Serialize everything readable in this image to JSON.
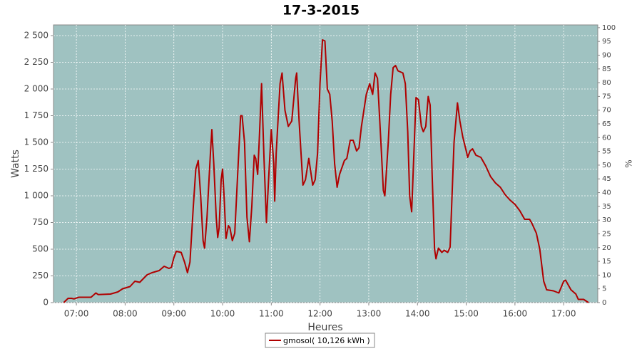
{
  "chart_data": {
    "type": "line",
    "title": "17-3-2015",
    "x_label": "Heures",
    "y_label": "Watts",
    "y2_label": "%",
    "xlim": [
      6.53,
      17.7
    ],
    "xticks": [
      {
        "value": 7,
        "label": "07:00"
      },
      {
        "value": 8,
        "label": "08:00"
      },
      {
        "value": 9,
        "label": "09:00"
      },
      {
        "value": 10,
        "label": "10:00"
      },
      {
        "value": 11,
        "label": "11:00"
      },
      {
        "value": 12,
        "label": "12:00"
      },
      {
        "value": 13,
        "label": "13:00"
      },
      {
        "value": 14,
        "label": "14:00"
      },
      {
        "value": 15,
        "label": "15:00"
      },
      {
        "value": 16,
        "label": "16:00"
      },
      {
        "value": 17,
        "label": "17:00"
      }
    ],
    "ylim": [
      0,
      2600
    ],
    "yticks": [
      0,
      250,
      500,
      750,
      {
        "value": 1000,
        "label": "1 000"
      },
      {
        "value": 1250,
        "label": "1 250"
      },
      {
        "value": 1500,
        "label": "1 500"
      },
      {
        "value": 1750,
        "label": "1 750"
      },
      {
        "value": 2000,
        "label": "2 000"
      },
      {
        "value": 2250,
        "label": "2 250"
      },
      {
        "value": 2500,
        "label": "2 500"
      }
    ],
    "y2lim": [
      0,
      101
    ],
    "y2ticks": [
      0,
      5,
      10,
      15,
      20,
      25,
      30,
      35,
      40,
      45,
      50,
      55,
      60,
      65,
      70,
      75,
      80,
      85,
      90,
      95,
      100
    ],
    "grid": true,
    "legend": "bottom",
    "x": [
      6.74,
      6.83,
      6.9,
      6.95,
      7.05,
      7.3,
      7.4,
      7.45,
      7.7,
      7.85,
      7.95,
      8.1,
      8.2,
      8.3,
      8.45,
      8.55,
      8.7,
      8.8,
      8.9,
      8.95,
      9.0,
      9.05,
      9.15,
      9.22,
      9.28,
      9.33,
      9.4,
      9.45,
      9.5,
      9.55,
      9.6,
      9.63,
      9.68,
      9.75,
      9.78,
      9.82,
      9.87,
      9.9,
      9.93,
      9.97,
      10.0,
      10.03,
      10.07,
      10.12,
      10.15,
      10.2,
      10.25,
      10.32,
      10.37,
      10.4,
      10.45,
      10.5,
      10.55,
      10.6,
      10.65,
      10.68,
      10.72,
      10.75,
      10.8,
      10.85,
      10.9,
      10.95,
      11.0,
      11.05,
      11.07,
      11.1,
      11.18,
      11.22,
      11.28,
      11.35,
      11.42,
      11.5,
      11.52,
      11.57,
      11.65,
      11.7,
      11.77,
      11.85,
      11.9,
      11.95,
      12.0,
      12.05,
      12.1,
      12.15,
      12.2,
      12.25,
      12.3,
      12.35,
      12.4,
      12.5,
      12.55,
      12.62,
      12.68,
      12.75,
      12.8,
      12.85,
      12.95,
      13.02,
      13.08,
      13.13,
      13.18,
      13.25,
      13.3,
      13.33,
      13.4,
      13.45,
      13.5,
      13.55,
      13.6,
      13.7,
      13.75,
      13.8,
      13.84,
      13.88,
      13.97,
      14.02,
      14.08,
      14.12,
      14.17,
      14.22,
      14.26,
      14.3,
      14.35,
      14.38,
      14.43,
      14.5,
      14.55,
      14.62,
      14.67,
      14.75,
      14.82,
      14.87,
      14.93,
      15.0,
      15.03,
      15.08,
      15.13,
      15.2,
      15.3,
      15.4,
      15.5,
      15.6,
      15.7,
      15.8,
      15.9,
      16.0,
      16.1,
      16.2,
      16.3,
      16.35,
      16.44,
      16.51,
      16.59,
      16.65,
      16.79,
      16.9,
      17.0,
      17.04,
      17.15,
      17.25,
      17.3,
      17.41,
      17.51
    ],
    "series": [
      {
        "name": "gmosol( 10,126 kWh )",
        "color": "#b00000",
        "values": [
          0,
          40,
          40,
          35,
          50,
          50,
          90,
          75,
          80,
          100,
          130,
          150,
          200,
          190,
          260,
          280,
          300,
          340,
          320,
          330,
          420,
          480,
          470,
          380,
          280,
          380,
          900,
          1250,
          1330,
          1000,
          580,
          510,
          800,
          1400,
          1620,
          1300,
          800,
          610,
          700,
          1150,
          1250,
          1000,
          600,
          720,
          700,
          580,
          650,
          1300,
          1750,
          1750,
          1500,
          800,
          570,
          900,
          1380,
          1350,
          1200,
          1500,
          2050,
          1350,
          750,
          1200,
          1620,
          1300,
          950,
          1400,
          2050,
          2150,
          1800,
          1650,
          1700,
          2100,
          2150,
          1700,
          1100,
          1150,
          1350,
          1100,
          1150,
          1400,
          2050,
          2460,
          2450,
          2000,
          1950,
          1700,
          1300,
          1080,
          1200,
          1330,
          1350,
          1520,
          1520,
          1420,
          1450,
          1650,
          1950,
          2050,
          1950,
          2150,
          2100,
          1500,
          1050,
          1000,
          1500,
          1950,
          2200,
          2220,
          2170,
          2150,
          2050,
          1600,
          1000,
          850,
          1920,
          1900,
          1650,
          1600,
          1650,
          1930,
          1850,
          1200,
          500,
          410,
          510,
          470,
          490,
          470,
          520,
          1500,
          1870,
          1700,
          1550,
          1420,
          1360,
          1420,
          1440,
          1380,
          1360,
          1280,
          1180,
          1120,
          1080,
          1010,
          960,
          920,
          860,
          780,
          780,
          740,
          650,
          500,
          200,
          120,
          110,
          90,
          200,
          210,
          120,
          80,
          30,
          30,
          0
        ]
      }
    ]
  }
}
